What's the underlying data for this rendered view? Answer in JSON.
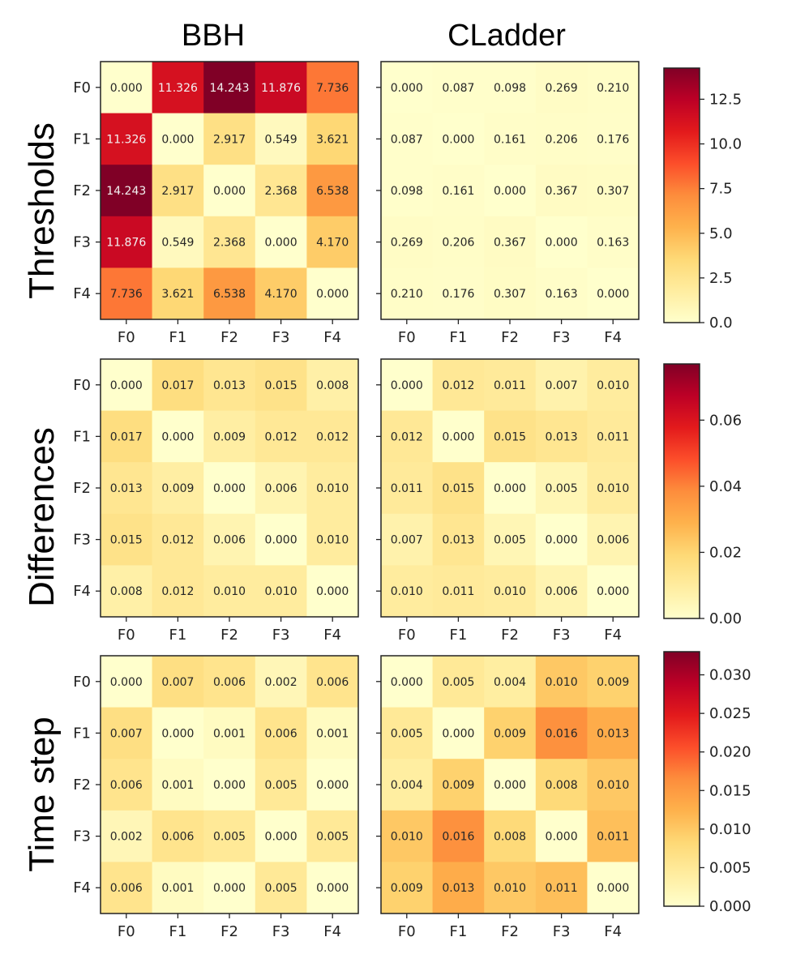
{
  "chart_data": {
    "type": "heatmap",
    "columns": [
      "BBH",
      "CLadder"
    ],
    "rows": [
      {
        "title": "Thresholds",
        "vmax": 14.243,
        "colorbar_ticks": [
          "0.0",
          "2.5",
          "5.0",
          "7.5",
          "10.0",
          "12.5"
        ],
        "colorbar_tick_values": [
          0.0,
          2.5,
          5.0,
          7.5,
          10.0,
          12.5
        ],
        "panels": [
          {
            "matrix": [
              [
                0.0,
                11.326,
                14.243,
                11.876,
                7.736
              ],
              [
                11.326,
                0.0,
                2.917,
                0.549,
                3.621
              ],
              [
                14.243,
                2.917,
                0.0,
                2.368,
                6.538
              ],
              [
                11.876,
                0.549,
                2.368,
                0.0,
                4.17
              ],
              [
                7.736,
                3.621,
                6.538,
                4.17,
                0.0
              ]
            ],
            "labels": [
              [
                "0.000",
                "11.326",
                "14.243",
                "11.876",
                "7.736"
              ],
              [
                "11.326",
                "0.000",
                "2.917",
                "0.549",
                "3.621"
              ],
              [
                "14.243",
                "2.917",
                "0.000",
                "2.368",
                "6.538"
              ],
              [
                "11.876",
                "0.549",
                "2.368",
                "0.000",
                "4.170"
              ],
              [
                "7.736",
                "3.621",
                "6.538",
                "4.170",
                "0.000"
              ]
            ]
          },
          {
            "matrix": [
              [
                0.0,
                0.087,
                0.098,
                0.269,
                0.21
              ],
              [
                0.087,
                0.0,
                0.161,
                0.206,
                0.176
              ],
              [
                0.098,
                0.161,
                0.0,
                0.367,
                0.307
              ],
              [
                0.269,
                0.206,
                0.367,
                0.0,
                0.163
              ],
              [
                0.21,
                0.176,
                0.307,
                0.163,
                0.0
              ]
            ],
            "labels": [
              [
                "0.000",
                "0.087",
                "0.098",
                "0.269",
                "0.210"
              ],
              [
                "0.087",
                "0.000",
                "0.161",
                "0.206",
                "0.176"
              ],
              [
                "0.098",
                "0.161",
                "0.000",
                "0.367",
                "0.307"
              ],
              [
                "0.269",
                "0.206",
                "0.367",
                "0.000",
                "0.163"
              ],
              [
                "0.210",
                "0.176",
                "0.307",
                "0.163",
                "0.000"
              ]
            ]
          }
        ]
      },
      {
        "title": "Differences",
        "vmax": 0.077,
        "colorbar_ticks": [
          "0.00",
          "0.02",
          "0.04",
          "0.06"
        ],
        "colorbar_tick_values": [
          0.0,
          0.02,
          0.04,
          0.06
        ],
        "panels": [
          {
            "matrix": [
              [
                0.0,
                0.017,
                0.013,
                0.015,
                0.008
              ],
              [
                0.017,
                0.0,
                0.009,
                0.012,
                0.012
              ],
              [
                0.013,
                0.009,
                0.0,
                0.006,
                0.01
              ],
              [
                0.015,
                0.012,
                0.006,
                0.0,
                0.01
              ],
              [
                0.008,
                0.012,
                0.01,
                0.01,
                0.0
              ]
            ],
            "labels": [
              [
                "0.000",
                "0.017",
                "0.013",
                "0.015",
                "0.008"
              ],
              [
                "0.017",
                "0.000",
                "0.009",
                "0.012",
                "0.012"
              ],
              [
                "0.013",
                "0.009",
                "0.000",
                "0.006",
                "0.010"
              ],
              [
                "0.015",
                "0.012",
                "0.006",
                "0.000",
                "0.010"
              ],
              [
                "0.008",
                "0.012",
                "0.010",
                "0.010",
                "0.000"
              ]
            ]
          },
          {
            "matrix": [
              [
                0.0,
                0.012,
                0.011,
                0.007,
                0.01
              ],
              [
                0.012,
                0.0,
                0.015,
                0.013,
                0.011
              ],
              [
                0.011,
                0.015,
                0.0,
                0.005,
                0.01
              ],
              [
                0.007,
                0.013,
                0.005,
                0.0,
                0.006
              ],
              [
                0.01,
                0.011,
                0.01,
                0.006,
                0.0
              ]
            ],
            "labels": [
              [
                "0.000",
                "0.012",
                "0.011",
                "0.007",
                "0.010"
              ],
              [
                "0.012",
                "0.000",
                "0.015",
                "0.013",
                "0.011"
              ],
              [
                "0.011",
                "0.015",
                "0.000",
                "0.005",
                "0.010"
              ],
              [
                "0.007",
                "0.013",
                "0.005",
                "0.000",
                "0.006"
              ],
              [
                "0.010",
                "0.011",
                "0.010",
                "0.006",
                "0.000"
              ]
            ]
          }
        ]
      },
      {
        "title": "Time step",
        "vmax": 0.033,
        "colorbar_ticks": [
          "0.000",
          "0.005",
          "0.010",
          "0.015",
          "0.020",
          "0.025",
          "0.030"
        ],
        "colorbar_tick_values": [
          0.0,
          0.005,
          0.01,
          0.015,
          0.02,
          0.025,
          0.03
        ],
        "panels": [
          {
            "matrix": [
              [
                0.0,
                0.007,
                0.006,
                0.002,
                0.006
              ],
              [
                0.007,
                0.0,
                0.001,
                0.006,
                0.001
              ],
              [
                0.006,
                0.001,
                0.0,
                0.005,
                0.0
              ],
              [
                0.002,
                0.006,
                0.005,
                0.0,
                0.005
              ],
              [
                0.006,
                0.001,
                0.0,
                0.005,
                0.0
              ]
            ],
            "labels": [
              [
                "0.000",
                "0.007",
                "0.006",
                "0.002",
                "0.006"
              ],
              [
                "0.007",
                "0.000",
                "0.001",
                "0.006",
                "0.001"
              ],
              [
                "0.006",
                "0.001",
                "0.000",
                "0.005",
                "0.000"
              ],
              [
                "0.002",
                "0.006",
                "0.005",
                "0.000",
                "0.005"
              ],
              [
                "0.006",
                "0.001",
                "0.000",
                "0.005",
                "0.000"
              ]
            ]
          },
          {
            "matrix": [
              [
                0.0,
                0.005,
                0.004,
                0.01,
                0.009
              ],
              [
                0.005,
                0.0,
                0.009,
                0.016,
                0.013
              ],
              [
                0.004,
                0.009,
                0.0,
                0.008,
                0.01
              ],
              [
                0.01,
                0.016,
                0.008,
                0.0,
                0.011
              ],
              [
                0.009,
                0.013,
                0.01,
                0.011,
                0.0
              ]
            ],
            "labels": [
              [
                "0.000",
                "0.005",
                "0.004",
                "0.010",
                "0.009"
              ],
              [
                "0.005",
                "0.000",
                "0.009",
                "0.016",
                "0.013"
              ],
              [
                "0.004",
                "0.009",
                "0.000",
                "0.008",
                "0.010"
              ],
              [
                "0.010",
                "0.016",
                "0.008",
                "0.000",
                "0.011"
              ],
              [
                "0.009",
                "0.013",
                "0.010",
                "0.011",
                "0.000"
              ]
            ]
          }
        ]
      }
    ],
    "tick_labels": [
      "F0",
      "F1",
      "F2",
      "F3",
      "F4"
    ],
    "colormap": "YlOrRd",
    "colormap_stops": [
      "#ffffcc",
      "#ffeda0",
      "#fed976",
      "#feb24c",
      "#fd8d3c",
      "#fc4e2a",
      "#e31a1c",
      "#bd0026",
      "#800026"
    ],
    "dark_text_color": "#262626",
    "light_text_color": "#f2f2f2"
  }
}
